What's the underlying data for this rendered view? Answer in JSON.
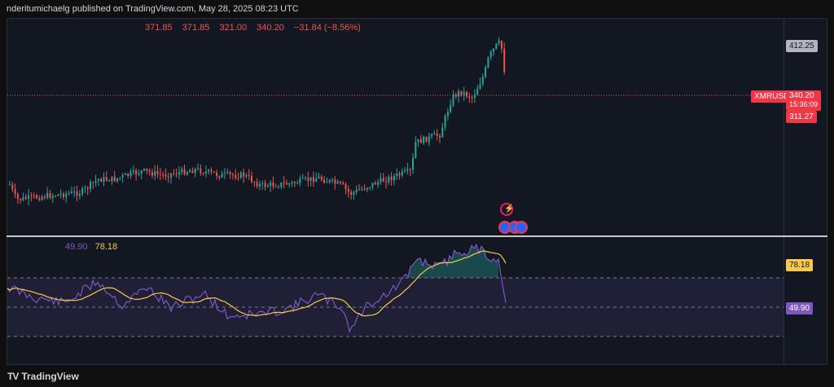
{
  "header": {
    "published": "nderitumichaelg published on TradingView.com, May 28, 2025 08:23 UTC"
  },
  "ohlc": {
    "open": "371.85",
    "high": "371.85",
    "low": "321.00",
    "close": "340.20",
    "change": "−31.84 (−8.56%)"
  },
  "price_axis": {
    "high_label": "412.25",
    "symbol_label": "XMRUSD",
    "last_price": "340.20",
    "countdown": "15:36:09",
    "low_label": "311.27"
  },
  "rsi": {
    "value": "49.90",
    "ma": "78.18",
    "value_color": "#7e57c2",
    "ma_color": "#f7c948"
  },
  "events": {
    "lightning_icon": "lightning-icon",
    "flag_icons": "us-flag-icon"
  },
  "footer": {
    "brand": "TradingView"
  },
  "colors": {
    "up": "#26a69a",
    "down": "#ef5350",
    "background": "#131722"
  }
}
